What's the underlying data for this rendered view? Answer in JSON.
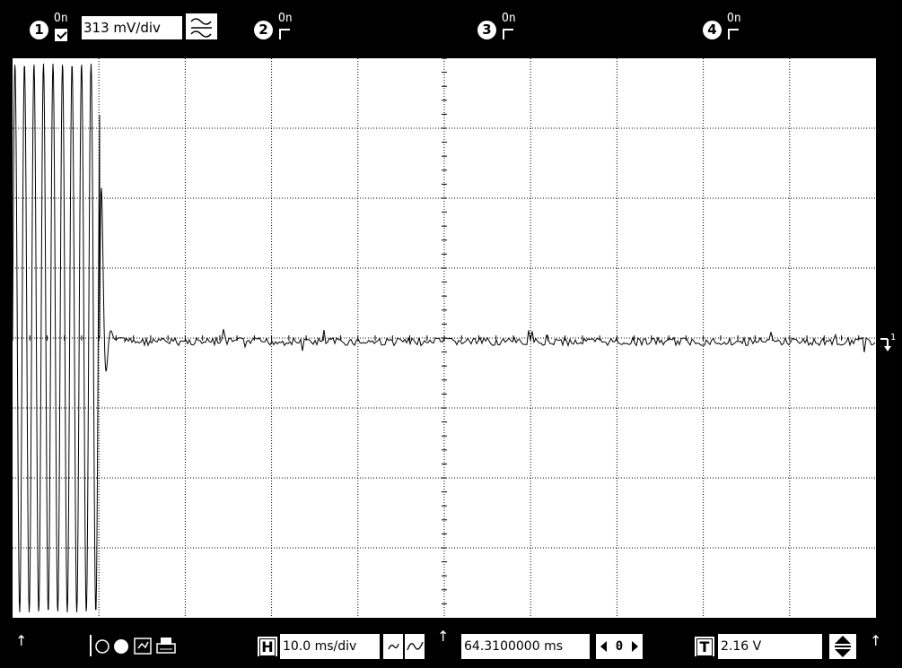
{
  "channels": [
    {
      "number": "1",
      "on_label": "On",
      "enabled": true,
      "volts_per_div": "313 mV/div"
    },
    {
      "number": "2",
      "on_label": "On",
      "enabled": false
    },
    {
      "number": "3",
      "on_label": "On",
      "enabled": false
    },
    {
      "number": "4",
      "on_label": "On",
      "enabled": false
    }
  ],
  "trace_marker": "1",
  "bottom": {
    "up_arrow": "↑",
    "timebase_label": "H",
    "timebase": "10.0 ms/div",
    "delay": "64.3100000 ms",
    "delay_step": "0",
    "trigger_label": "T",
    "trigger_level": "2.16 V"
  },
  "icons": [
    "run-stop-icon",
    "record-icon",
    "autoscale-icon",
    "print-icon",
    "slope-icon",
    "edge-icon",
    "spin-arrows-icon"
  ],
  "colors": {
    "background": "#000000",
    "screen": "#ffffff",
    "trace": "#000000"
  }
}
